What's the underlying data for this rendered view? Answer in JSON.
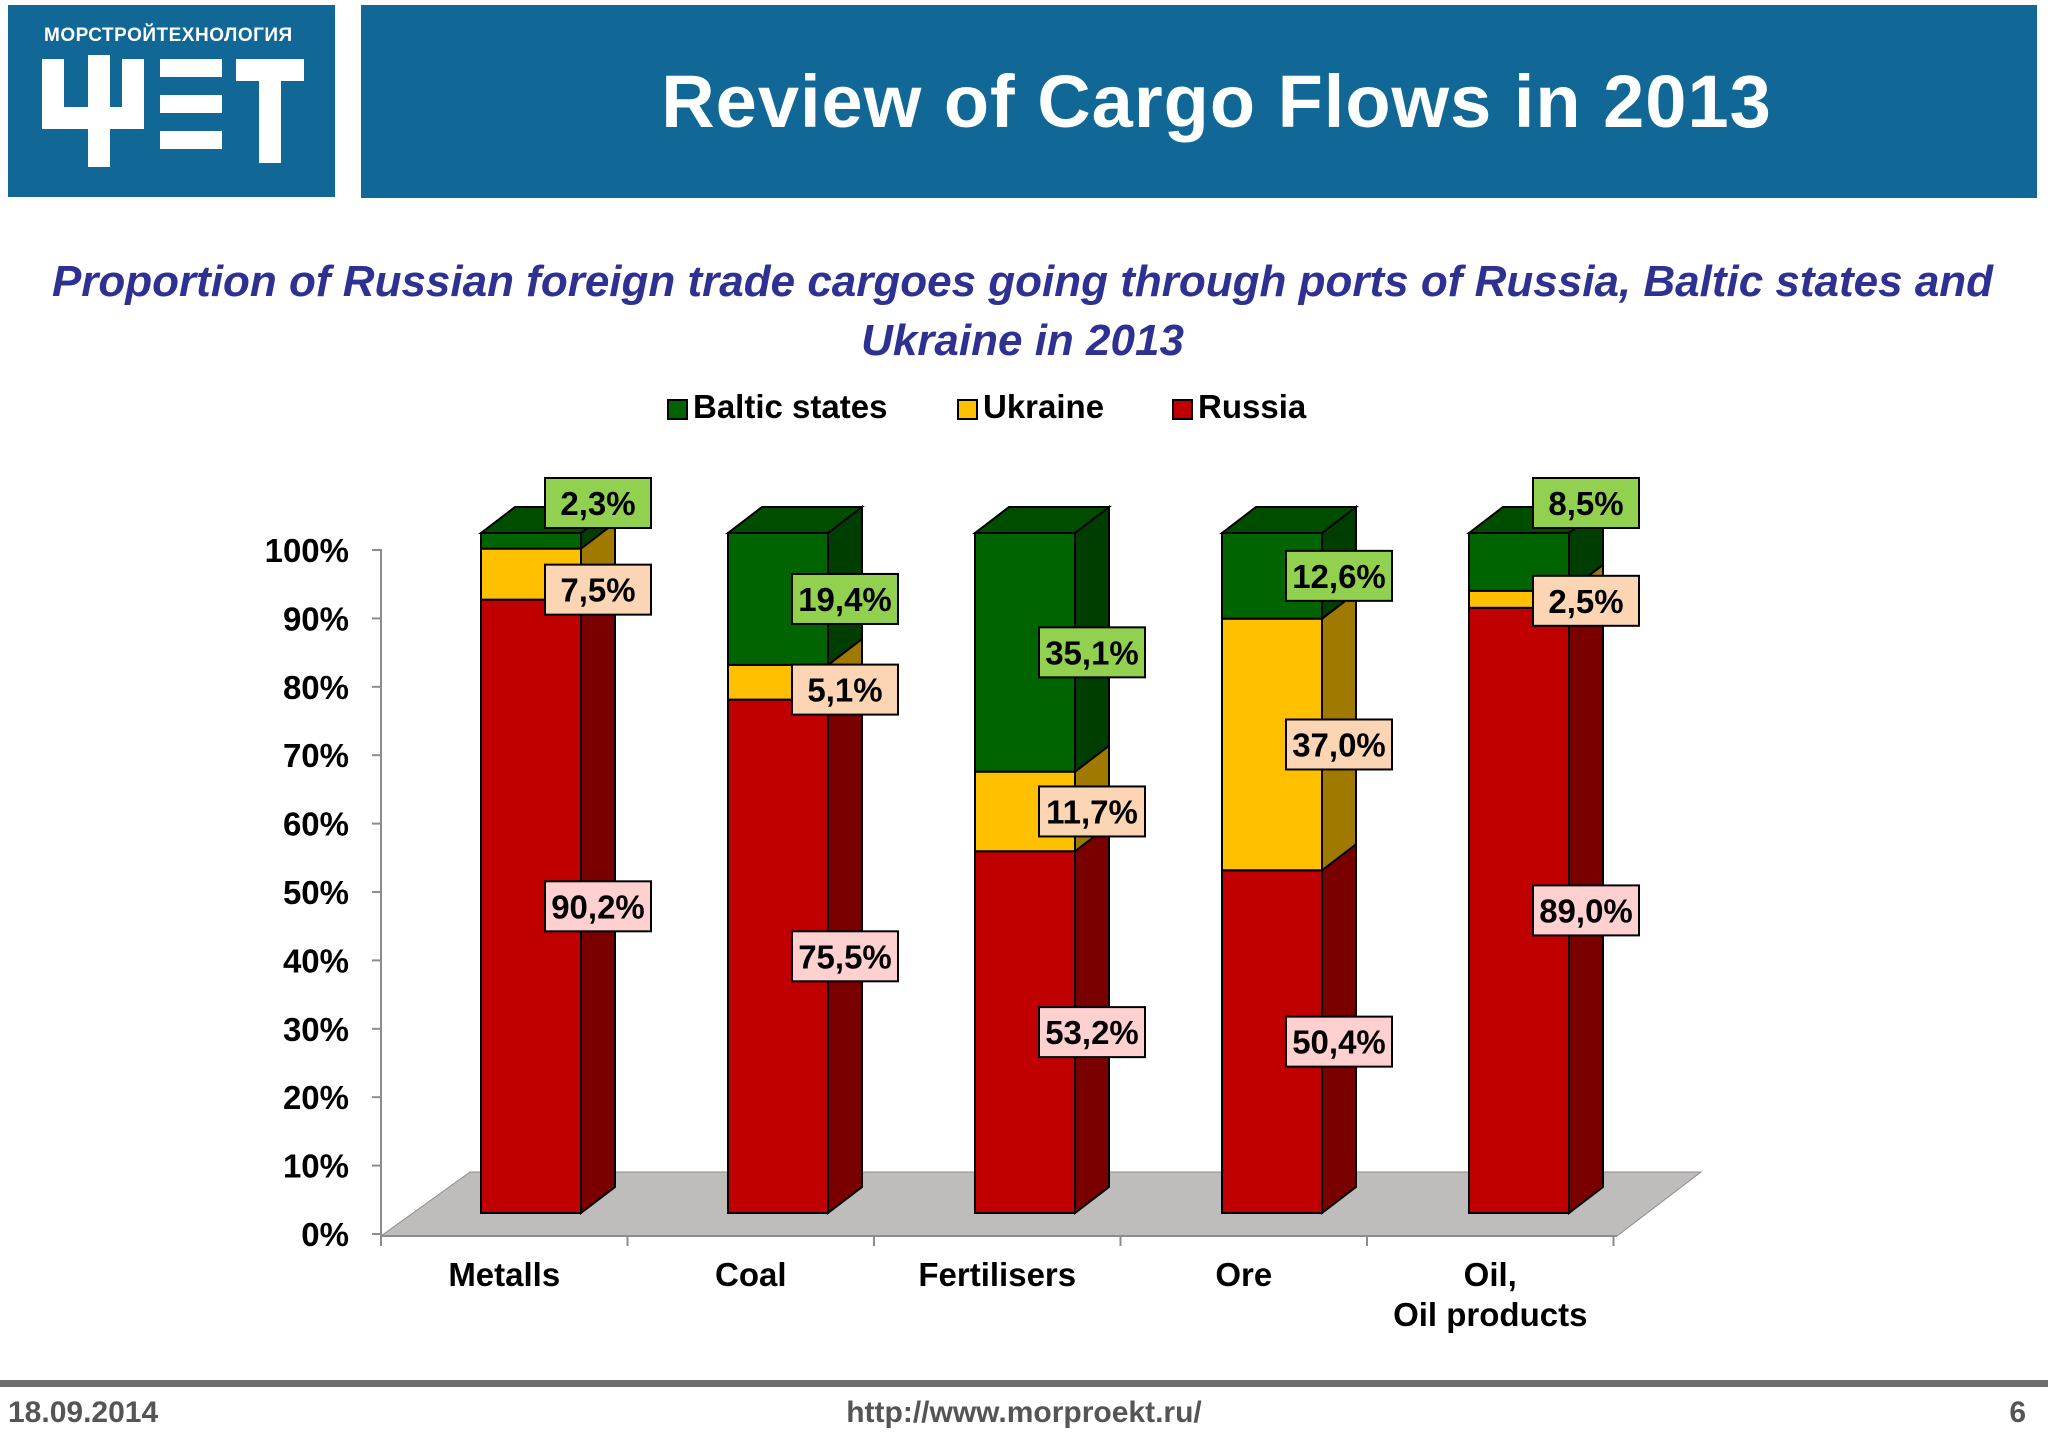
{
  "header": {
    "logo_caption": "МОРСТРОЙТЕХНОЛОГИЯ",
    "title": "Review of Cargo Flows in 2013"
  },
  "chart_data": {
    "type": "bar",
    "stacked": true,
    "title": "Proportion of Russian foreign trade cargoes going through ports of Russia, Baltic states and Ukraine in 2013",
    "categories": [
      "Metalls",
      "Coal",
      "Fertilisers",
      "Ore",
      "Oil,|Oil products"
    ],
    "series": [
      {
        "name": "Russia",
        "values": [
          90.2,
          75.5,
          53.2,
          50.4,
          89.0
        ],
        "labels": [
          "90,2%",
          "75,5%",
          "53,2%",
          "50,4%",
          "89,0%"
        ],
        "color": "#c00000",
        "side_color": "#7a0000",
        "top_color": "#960000",
        "label_bg": "#ffd0d0"
      },
      {
        "name": "Ukraine",
        "values": [
          7.5,
          5.1,
          11.7,
          37.0,
          2.5
        ],
        "labels": [
          "7,5%",
          "5,1%",
          "11,7%",
          "37,0%",
          "2,5%"
        ],
        "color": "#ffc000",
        "side_color": "#a07a00",
        "top_color": "#c89600",
        "label_bg": "#fcd5b5"
      },
      {
        "name": "Baltic states",
        "values": [
          2.3,
          19.4,
          35.1,
          12.6,
          8.5
        ],
        "labels": [
          "2,3%",
          "19,4%",
          "35,1%",
          "12,6%",
          "8,5%"
        ],
        "color": "#006400",
        "side_color": "#003d00",
        "top_color": "#004d00",
        "label_bg": "#92d050"
      }
    ],
    "legend_order": [
      "Baltic states",
      "Ukraine",
      "Russia"
    ],
    "legend_position": "top",
    "y_ticks": [
      "0%",
      "10%",
      "20%",
      "30%",
      "40%",
      "50%",
      "60%",
      "70%",
      "80%",
      "90%",
      "100%"
    ],
    "ylim": [
      0,
      100
    ],
    "xlabel": "",
    "ylabel": ""
  },
  "footer": {
    "date": "18.09.2014",
    "url": "http://www.morproekt.ru/",
    "page": "6"
  }
}
